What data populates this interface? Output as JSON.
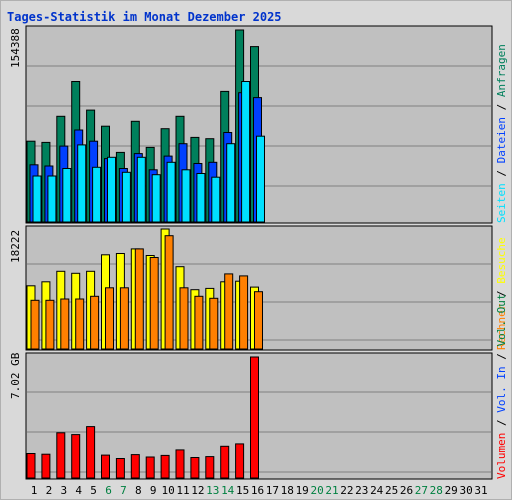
{
  "title": "Tages-Statistik im Monat Dezember 2025",
  "colors": {
    "title": "#0033cc",
    "panel_bg": "#c0c0c0",
    "weekday_label": "#000000",
    "weekend_label": "#008040",
    "hits": "#00805c",
    "files": "#0040ff",
    "pages": "#00e0ff",
    "visits": "#ffff00",
    "sites": "#ff8000",
    "kbytes_in": "#0040ff",
    "kbytes_out": "#008040",
    "volume": "#ff0000"
  },
  "labels": {
    "top_axis_max": "154388",
    "mid_axis_max": "18222",
    "bottom_axis_max": "7.02 GB",
    "sep": "/",
    "legend_top": {
      "pages": "Seiten",
      "files": "Dateien",
      "hits": "Anfragen"
    },
    "legend_mid": {
      "visits": "Besuche",
      "sites": "Rechner"
    },
    "legend_bottom": {
      "out": "Vol. Out",
      "in": "Vol. In",
      "volume": "Volumen"
    }
  },
  "chart_data": [
    {
      "type": "bar",
      "panel": "top",
      "categories": [
        "1",
        "2",
        "3",
        "4",
        "5",
        "6",
        "7",
        "8",
        "9",
        "10",
        "11",
        "12",
        "13",
        "14",
        "15",
        "16",
        "17",
        "18",
        "19",
        "20",
        "21",
        "22",
        "23",
        "24",
        "25",
        "26",
        "27",
        "28",
        "29",
        "30",
        "31"
      ],
      "weekend_days": [
        "6",
        "7",
        "13",
        "14",
        "20",
        "21",
        "27",
        "28"
      ],
      "ylim": [
        0,
        154388
      ],
      "series": [
        {
          "name": "Anfragen",
          "values": [
            65000,
            64000,
            85000,
            113000,
            90000,
            77000,
            56000,
            81000,
            60000,
            75000,
            85000,
            68000,
            67000,
            105000,
            154388,
            141000,
            0,
            0,
            0,
            0,
            0,
            0,
            0,
            0,
            0,
            0,
            0,
            0,
            0,
            0,
            0
          ]
        },
        {
          "name": "Dateien",
          "values": [
            46000,
            45000,
            61000,
            74000,
            65000,
            51000,
            43000,
            55000,
            42000,
            53000,
            63000,
            47000,
            48000,
            72000,
            104000,
            100000,
            0,
            0,
            0,
            0,
            0,
            0,
            0,
            0,
            0,
            0,
            0,
            0,
            0,
            0,
            0
          ]
        },
        {
          "name": "Seiten",
          "values": [
            37000,
            37000,
            43000,
            62000,
            44000,
            52000,
            40000,
            52000,
            38000,
            48000,
            42000,
            39000,
            36000,
            63000,
            113000,
            69000,
            0,
            0,
            0,
            0,
            0,
            0,
            0,
            0,
            0,
            0,
            0,
            0,
            0,
            0,
            0
          ]
        }
      ]
    },
    {
      "type": "bar",
      "panel": "middle",
      "categories": [
        "1",
        "2",
        "3",
        "4",
        "5",
        "6",
        "7",
        "8",
        "9",
        "10",
        "11",
        "12",
        "13",
        "14",
        "15",
        "16",
        "17",
        "18",
        "19",
        "20",
        "21",
        "22",
        "23",
        "24",
        "25",
        "26",
        "27",
        "28",
        "29",
        "30",
        "31"
      ],
      "ylim": [
        0,
        18222
      ],
      "series": [
        {
          "name": "Besuche",
          "values": [
            9600,
            10200,
            11800,
            11500,
            11800,
            14300,
            14500,
            15200,
            14200,
            18222,
            12500,
            9000,
            9200,
            10200,
            10300,
            9400,
            0,
            0,
            0,
            0,
            0,
            0,
            0,
            0,
            0,
            0,
            0,
            0,
            0,
            0,
            0
          ]
        },
        {
          "name": "Rechner",
          "values": [
            7400,
            7400,
            7600,
            7600,
            8000,
            9300,
            9300,
            15200,
            13900,
            17200,
            9300,
            8000,
            7700,
            11400,
            11100,
            8700,
            0,
            0,
            0,
            0,
            0,
            0,
            0,
            0,
            0,
            0,
            0,
            0,
            0,
            0,
            0
          ]
        }
      ]
    },
    {
      "type": "bar",
      "panel": "bottom",
      "categories": [
        "1",
        "2",
        "3",
        "4",
        "5",
        "6",
        "7",
        "8",
        "9",
        "10",
        "11",
        "12",
        "13",
        "14",
        "15",
        "16",
        "17",
        "18",
        "19",
        "20",
        "21",
        "22",
        "23",
        "24",
        "25",
        "26",
        "27",
        "28",
        "29",
        "30",
        "31"
      ],
      "ylim": [
        0,
        7.02
      ],
      "yunit": "GB",
      "series": [
        {
          "name": "Volumen",
          "values": [
            1.42,
            1.38,
            2.62,
            2.52,
            2.98,
            1.33,
            1.13,
            1.36,
            1.22,
            1.31,
            1.63,
            1.19,
            1.24,
            1.84,
            1.98,
            7.02,
            0,
            0,
            0,
            0,
            0,
            0,
            0,
            0,
            0,
            0,
            0,
            0,
            0,
            0,
            0
          ]
        }
      ]
    }
  ]
}
